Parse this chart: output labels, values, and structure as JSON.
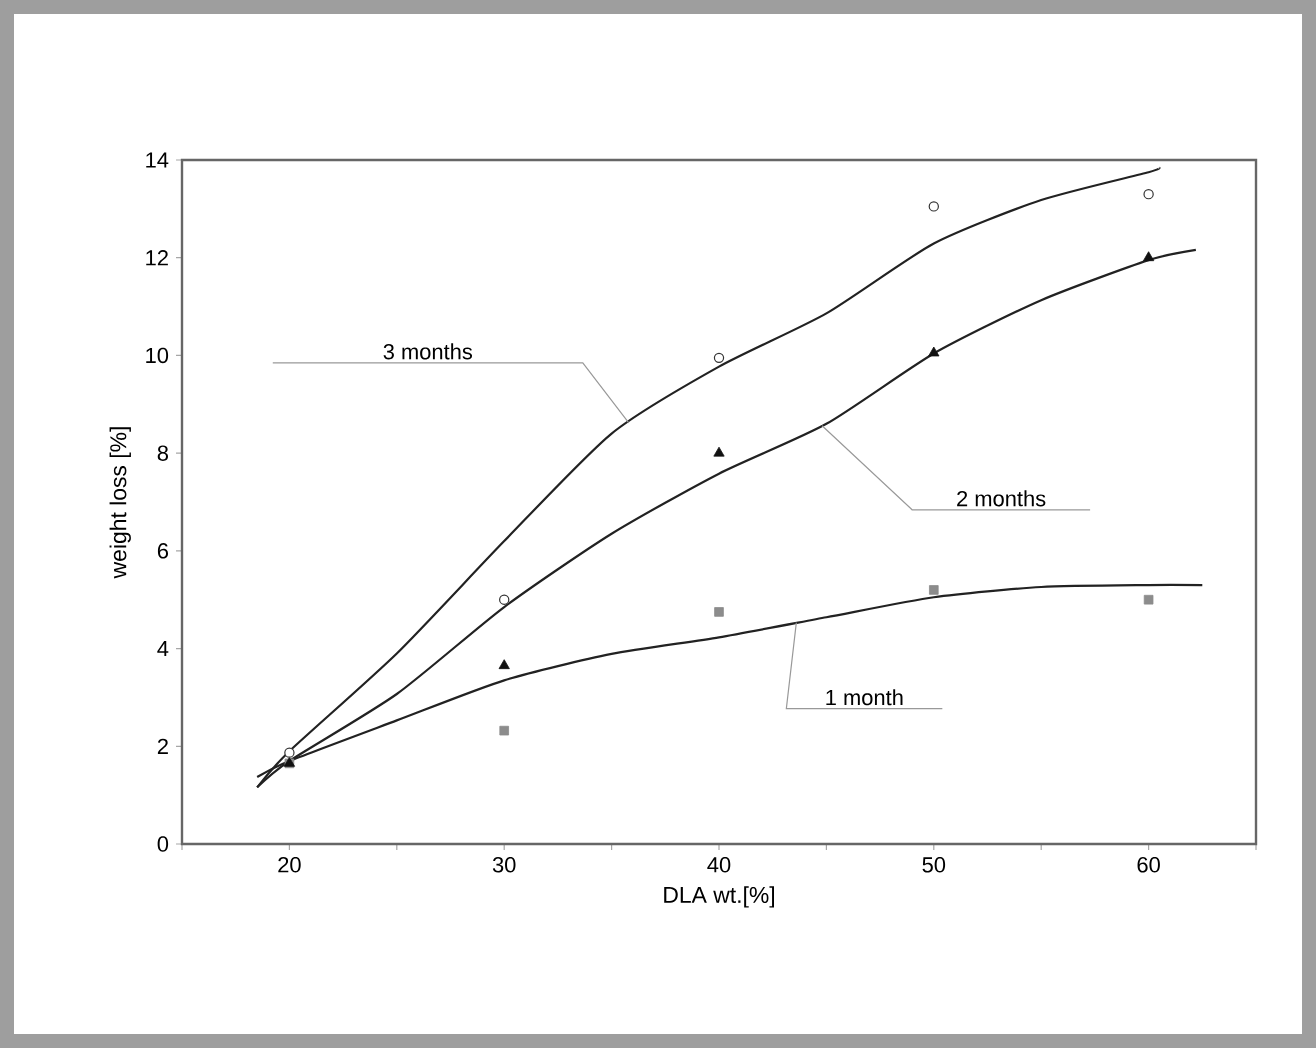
{
  "chart_data": {
    "type": "scatter",
    "xlabel": "DLA wt.[%]",
    "ylabel": "weight loss [%]",
    "xlim": [
      15,
      65
    ],
    "ylim": [
      0,
      14
    ],
    "xticks": [
      {
        "value": 15,
        "label": null
      },
      20,
      {
        "value": 25,
        "label": null
      },
      30,
      {
        "value": 35,
        "label": null
      },
      40,
      {
        "value": 45,
        "label": null
      },
      50,
      {
        "value": 55,
        "label": null
      },
      60,
      {
        "value": 65,
        "label": null
      }
    ],
    "yticks": [
      0,
      2,
      4,
      6,
      8,
      10,
      12,
      14
    ],
    "series": [
      {
        "marker": "circle",
        "color": "#333333",
        "x": [
          20,
          30,
          40,
          50,
          60
        ],
        "values": [
          1.87,
          5.0,
          9.95,
          13.05,
          13.3
        ]
      },
      {
        "marker": "triangle",
        "color": "#111111",
        "x": [
          20,
          30,
          40,
          50,
          60
        ],
        "values": [
          1.65,
          3.65,
          8.0,
          10.05,
          12.0
        ]
      },
      {
        "marker": "square",
        "color": "#8c8c8c",
        "x": [
          20,
          30,
          40,
          50,
          60
        ],
        "values": [
          1.65,
          2.32,
          4.75,
          5.2,
          5.0
        ]
      },
      {
        "type": "line",
        "marker": "none",
        "color": "#222222",
        "x": [
          18.5,
          20,
          25,
          30,
          35,
          40,
          45,
          50,
          55,
          60,
          60.5
        ],
        "values": [
          1.16,
          1.9,
          3.9,
          6.2,
          8.4,
          9.77,
          10.86,
          12.29,
          13.18,
          13.75,
          13.84
        ]
      },
      {
        "type": "line",
        "marker": "none",
        "color": "#222222",
        "x": [
          18.5,
          20,
          25,
          30,
          35,
          40,
          45,
          50,
          55,
          60,
          62.2
        ],
        "values": [
          1.16,
          1.7,
          3.07,
          4.85,
          6.35,
          7.58,
          8.6,
          10.04,
          11.13,
          11.95,
          12.16
        ]
      },
      {
        "type": "line",
        "marker": "none",
        "color": "#222222",
        "x": [
          18.5,
          20,
          25,
          30,
          35,
          40,
          45,
          50,
          55,
          60,
          62.5
        ],
        "values": [
          1.37,
          1.7,
          2.53,
          3.35,
          3.89,
          4.23,
          4.64,
          5.05,
          5.26,
          5.3,
          5.3
        ]
      }
    ],
    "annotations": [
      {
        "text": "3 months",
        "x": 35.8,
        "y": 8.62
      },
      {
        "text": "2 months",
        "x": 44.8,
        "y": 8.56
      },
      {
        "text": "1 month",
        "x": 43.6,
        "y": 4.53
      }
    ]
  }
}
